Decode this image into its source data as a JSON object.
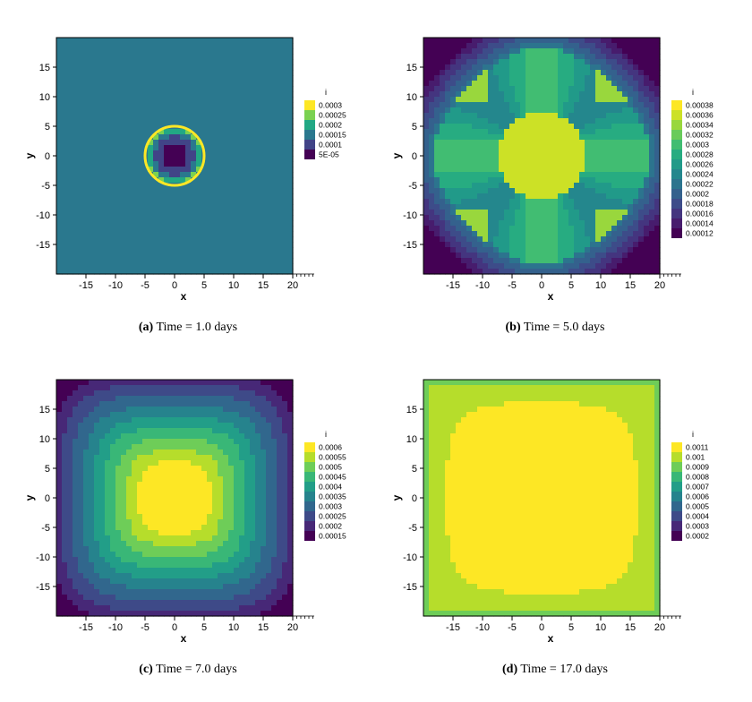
{
  "colors": {
    "viridis": [
      "#440154",
      "#482475",
      "#414487",
      "#355f8d",
      "#2a788e",
      "#21918c",
      "#22a884",
      "#44bf70",
      "#7ad151",
      "#bddf26",
      "#fde725"
    ]
  },
  "chart_data": [
    {
      "type": "heatmap",
      "caption_label": "(a)",
      "caption_text": "Time = 1.0 days",
      "xlabel": "x",
      "ylabel": "y",
      "xlim": [
        -20,
        20
      ],
      "ylim": [
        -20,
        20
      ],
      "xticks": [
        -15,
        -10,
        -5,
        0,
        5,
        10,
        15,
        20
      ],
      "yticks": [
        15,
        10,
        5,
        0,
        -5,
        -10,
        -15
      ],
      "legend_title": "i",
      "legend_levels": [
        "0.0003",
        "0.00025",
        "0.0002",
        "0.00015",
        "0.0001",
        "5E-05"
      ],
      "field": "ring",
      "background_level": 0.00015,
      "ring_center": [
        0,
        0
      ],
      "ring_outer_radius": 5,
      "ring_inner_radius": 2
    },
    {
      "type": "heatmap",
      "caption_label": "(b)",
      "caption_text": "Time = 5.0 days",
      "xlabel": "x",
      "ylabel": "y",
      "xlim": [
        -20,
        20
      ],
      "ylim": [
        -20,
        20
      ],
      "xticks": [
        -15,
        -10,
        -5,
        0,
        5,
        10,
        15,
        20
      ],
      "yticks": [
        15,
        10,
        5,
        0,
        -5,
        -10,
        -15
      ],
      "legend_title": "i",
      "legend_levels": [
        "0.00038",
        "0.00036",
        "0.00034",
        "0.00032",
        "0.0003",
        "0.00028",
        "0.00026",
        "0.00024",
        "0.00022",
        "0.0002",
        "0.00018",
        "0.00016",
        "0.00014",
        "0.00012"
      ],
      "field": "diamond",
      "core_radius": 7.5,
      "front_radius": 18.5
    },
    {
      "type": "heatmap",
      "caption_label": "(c)",
      "caption_text": "Time = 7.0 days",
      "xlabel": "x",
      "ylabel": "y",
      "xlim": [
        -20,
        20
      ],
      "ylim": [
        -20,
        20
      ],
      "xticks": [
        -15,
        -10,
        -5,
        0,
        5,
        10,
        15,
        20
      ],
      "yticks": [
        15,
        10,
        5,
        0,
        -5,
        -10,
        -15
      ],
      "legend_title": "i",
      "legend_levels": [
        "0.0006",
        "0.00055",
        "0.0005",
        "0.00045",
        "0.0004",
        "0.00035",
        "0.0003",
        "0.00025",
        "0.0002",
        "0.00015"
      ],
      "field": "squircle",
      "core_half_width": 5
    },
    {
      "type": "heatmap",
      "caption_label": "(d)",
      "caption_text": "Time = 17.0 days",
      "xlabel": "x",
      "ylabel": "y",
      "xlim": [
        -20,
        20
      ],
      "ylim": [
        -20,
        20
      ],
      "xticks": [
        -15,
        -10,
        -5,
        0,
        5,
        10,
        15,
        20
      ],
      "yticks": [
        15,
        10,
        5,
        0,
        -5,
        -10,
        -15
      ],
      "legend_title": "i",
      "legend_levels": [
        "0.0011",
        "0.001",
        "0.0009",
        "0.0008",
        "0.0007",
        "0.0006",
        "0.0005",
        "0.0004",
        "0.0003",
        "0.0002"
      ],
      "field": "plateau",
      "core_half_width": 16
    }
  ]
}
